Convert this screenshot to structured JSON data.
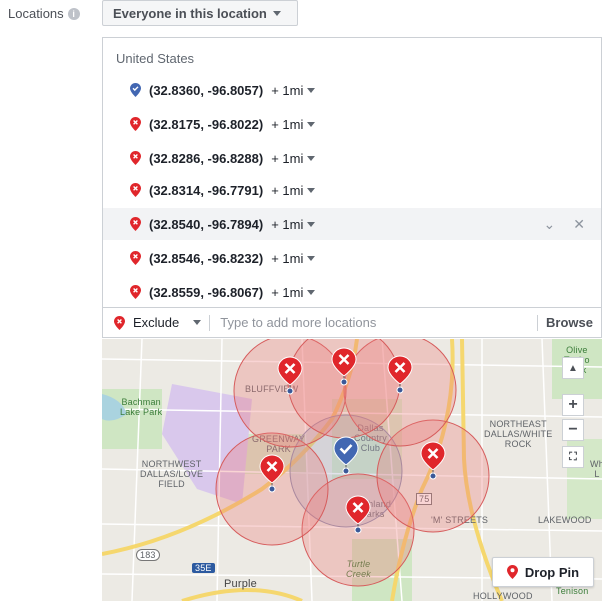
{
  "targeting": {
    "label": "Locations",
    "info_icon": "i",
    "dropdown_value": "Everyone in this location"
  },
  "locations": {
    "country": "United States",
    "items": [
      {
        "coord": "(32.8360, -96.8057)",
        "radius": "+ 1mi",
        "type": "include"
      },
      {
        "coord": "(32.8175, -96.8022)",
        "radius": "+ 1mi",
        "type": "exclude"
      },
      {
        "coord": "(32.8286, -96.8288)",
        "radius": "+ 1mi",
        "type": "exclude"
      },
      {
        "coord": "(32.8314, -96.7791)",
        "radius": "+ 1mi",
        "type": "exclude"
      },
      {
        "coord": "(32.8540, -96.7894)",
        "radius": "+ 1mi",
        "type": "exclude"
      },
      {
        "coord": "(32.8546, -96.8232)",
        "radius": "+ 1mi",
        "type": "exclude"
      },
      {
        "coord": "(32.8559, -96.8067)",
        "radius": "+ 1mi",
        "type": "exclude"
      }
    ]
  },
  "exclude_bar": {
    "mode": "Exclude",
    "placeholder": "Type to add more locations",
    "browse_label": "Browse"
  },
  "map": {
    "labels": {
      "bluffview": "BLUFFVIEW",
      "bachman": "Bachman\nLake Park",
      "greenway": "GREENWAY\nPARK",
      "dallas_cc": "Dallas\nCountry\nClub",
      "northwest": "NORTHWEST\nDALLAS/LOVE\nFIELD",
      "northeast": "NORTHEAST\nDALLAS/WHITE\nROCK",
      "highland": "Highland\nParks",
      "mstreets": "'M' STREETS",
      "lakewood": "LAKEWOOD",
      "turtle": "Turtle\nCreek",
      "olive": "Olive\nTapiro\nPark",
      "hollywood": "HOLLYWOOD",
      "tenison": "Tenison",
      "purple": "Purple",
      "route183": "183",
      "route35e": "35E",
      "route75": "75",
      "wl": "Wh\nL"
    },
    "zoom_in": "+",
    "zoom_out": "−",
    "drop_pin_label": "Drop Pin"
  },
  "colors": {
    "include_pin": "#4267b2",
    "exclude_pin": "#e0262b",
    "circle_fill": "rgba(235,120,120,0.32)"
  }
}
